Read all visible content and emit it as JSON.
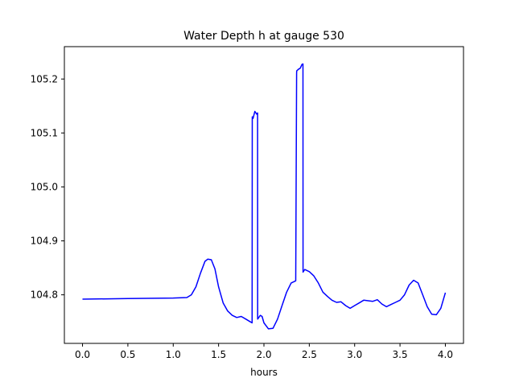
{
  "chart_data": {
    "type": "line",
    "title": "Water Depth h at gauge 530",
    "xlabel": "hours",
    "ylabel": "",
    "xlim": [
      -0.2,
      4.2
    ],
    "ylim": [
      104.71,
      105.26
    ],
    "x_ticks": [
      0.0,
      0.5,
      1.0,
      1.5,
      2.0,
      2.5,
      3.0,
      3.5,
      4.0
    ],
    "x_tick_labels": [
      "0.0",
      "0.5",
      "1.0",
      "1.5",
      "2.0",
      "2.5",
      "3.0",
      "3.5",
      "4.0"
    ],
    "y_ticks": [
      104.8,
      104.9,
      105.0,
      105.1,
      105.2
    ],
    "y_tick_labels": [
      "104.8",
      "104.9",
      "105.0",
      "105.1",
      "105.2"
    ],
    "grid": false,
    "series": [
      {
        "color": "#0000ff",
        "x": [
          0.0,
          0.5,
          1.0,
          1.15,
          1.2,
          1.25,
          1.3,
          1.35,
          1.38,
          1.42,
          1.46,
          1.5,
          1.55,
          1.6,
          1.65,
          1.7,
          1.75,
          1.8,
          1.85,
          1.87,
          1.871,
          1.88,
          1.9,
          1.92,
          1.93,
          1.931,
          1.96,
          1.98,
          2.0,
          2.05,
          2.1,
          2.15,
          2.2,
          2.25,
          2.3,
          2.35,
          2.36,
          2.361,
          2.38,
          2.4,
          2.42,
          2.43,
          2.431,
          2.45,
          2.5,
          2.55,
          2.6,
          2.65,
          2.7,
          2.75,
          2.8,
          2.85,
          2.9,
          2.95,
          3.0,
          3.05,
          3.1,
          3.15,
          3.2,
          3.25,
          3.3,
          3.35,
          3.4,
          3.45,
          3.5,
          3.55,
          3.6,
          3.65,
          3.7,
          3.75,
          3.8,
          3.85,
          3.9,
          3.95,
          4.0
        ],
        "y": [
          104.792,
          104.793,
          104.794,
          104.795,
          104.8,
          104.815,
          104.84,
          104.862,
          104.866,
          104.865,
          104.848,
          104.815,
          104.785,
          104.77,
          104.762,
          104.758,
          104.76,
          104.755,
          104.75,
          104.748,
          105.13,
          105.127,
          105.14,
          105.135,
          105.137,
          104.755,
          104.762,
          104.76,
          104.748,
          104.737,
          104.738,
          104.755,
          104.78,
          104.805,
          104.822,
          104.826,
          105.21,
          105.215,
          105.218,
          105.22,
          105.227,
          105.228,
          104.842,
          104.847,
          104.843,
          104.835,
          104.822,
          104.805,
          104.797,
          104.79,
          104.786,
          104.787,
          104.78,
          104.775,
          104.78,
          104.785,
          104.79,
          104.789,
          104.788,
          104.791,
          104.783,
          104.778,
          104.782,
          104.786,
          104.79,
          104.8,
          104.818,
          104.827,
          104.822,
          104.8,
          104.778,
          104.764,
          104.763,
          104.775,
          104.804
        ]
      }
    ]
  }
}
